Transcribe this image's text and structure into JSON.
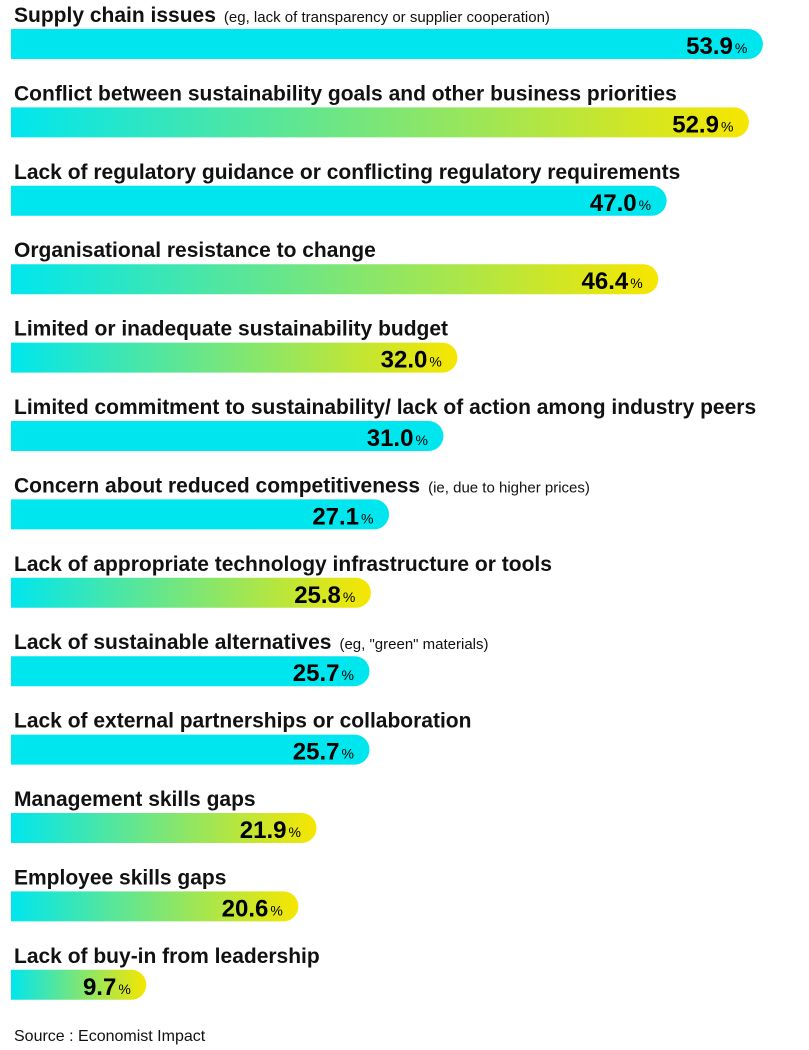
{
  "colors": {
    "solid": "#00E6EE",
    "gradient_start": "#00E6EE",
    "gradient_end": "#F7E600"
  },
  "chart_data": {
    "type": "bar",
    "orientation": "horizontal",
    "unit": "%",
    "xlim": [
      0,
      54
    ],
    "grid": false,
    "categories": [
      {
        "label": "Supply chain issues",
        "note": "(eg, lack of transparency or supplier cooperation)",
        "value": 53.9,
        "style": "solid"
      },
      {
        "label": "Conflict between sustainability goals and other business priorities",
        "note": "",
        "value": 52.9,
        "style": "gradient"
      },
      {
        "label": "Lack of regulatory guidance or conflicting regulatory requirements",
        "note": "",
        "value": 47.0,
        "style": "solid"
      },
      {
        "label": "Organisational resistance to change",
        "note": "",
        "value": 46.4,
        "style": "gradient"
      },
      {
        "label": "Limited or inadequate sustainability budget",
        "note": "",
        "value": 32.0,
        "style": "gradient"
      },
      {
        "label": "Limited commitment to sustainability/ lack of action among industry peers",
        "note": "",
        "value": 31.0,
        "style": "solid"
      },
      {
        "label": "Concern about reduced competitiveness",
        "note": "(ie, due to higher prices)",
        "value": 27.1,
        "style": "solid"
      },
      {
        "label": "Lack of appropriate technology infrastructure or tools",
        "note": "",
        "value": 25.8,
        "style": "gradient"
      },
      {
        "label": "Lack of sustainable alternatives",
        "note": "(eg,  \"green\" materials)",
        "value": 25.7,
        "style": "solid"
      },
      {
        "label": "Lack of external partnerships or collaboration",
        "note": "",
        "value": 25.7,
        "style": "solid"
      },
      {
        "label": "Management skills gaps",
        "note": "",
        "value": 21.9,
        "style": "gradient"
      },
      {
        "label": "Employee skills gaps",
        "note": "",
        "value": 20.6,
        "style": "gradient"
      },
      {
        "label": "Lack of buy-in from leadership",
        "note": "",
        "value": 9.7,
        "style": "gradient"
      }
    ],
    "value_labels": [
      "53.9",
      "52.9",
      "47.0",
      "46.4",
      "32.0",
      "31.0",
      "27.1",
      "25.8",
      "25.7",
      "25.7",
      "21.9",
      "20.6",
      "9.7"
    ],
    "source": "Source : Economist Impact"
  }
}
